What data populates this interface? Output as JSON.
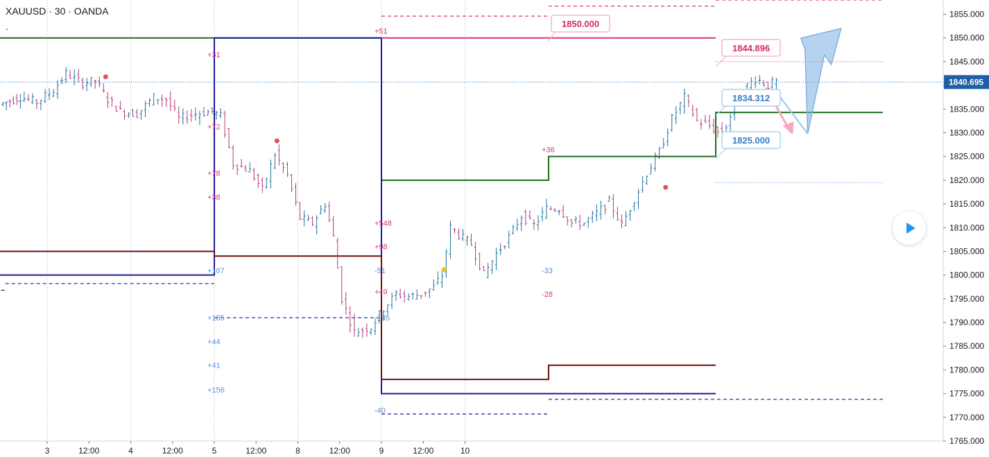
{
  "header": {
    "symbol": "XAUUSD · 30 · OANDA",
    "dot": "."
  },
  "colors": {
    "up": "#1e6fa0",
    "down": "#b0397a",
    "grid": "#b2b5be",
    "green": "#1b6e1b",
    "navy": "#1a1a9a",
    "maroon": "#6b0f0f",
    "magenta": "#d63384",
    "lightblue": "#5b8dd9",
    "pinkbox": "#f3b5cc",
    "bluebox": "#a9d3ee",
    "axis": "#131722"
  },
  "chart_data": {
    "type": "candlestick",
    "timeframe": "30",
    "ylim": [
      1765,
      1858
    ],
    "x_ticks": [
      "3",
      "12:00",
      "4",
      "12:00",
      "5",
      "12:00",
      "8",
      "12:00",
      "9",
      "12:00",
      "10"
    ],
    "y_ticks": [
      "1765.000",
      "1770.000",
      "1775.000",
      "1780.000",
      "1785.000",
      "1790.000",
      "1795.000",
      "1800.000",
      "1805.000",
      "1810.000",
      "1815.000",
      "1820.000",
      "1825.000",
      "1830.000",
      "1835.000",
      "1840.000",
      "1845.000",
      "1850.000",
      "1855.000"
    ],
    "last_price": "1840.695",
    "price_labels": [
      {
        "text": "1850.000",
        "price": 1850.0,
        "style": "pink"
      },
      {
        "text": "1844.896",
        "price": 1844.896,
        "style": "pink"
      },
      {
        "text": "1834.312",
        "price": 1834.312,
        "style": "blue"
      },
      {
        "text": "1825.000",
        "price": 1825.0,
        "style": "blue"
      }
    ],
    "pivot_levels": [
      {
        "color": "green",
        "segments": [
          [
            -1,
            1850.0,
            4.0
          ],
          [
            4.0,
            1820.0,
            6.0
          ],
          [
            6.0,
            1825.0,
            8.0
          ],
          [
            8.0,
            1834.3,
            10.0
          ]
        ]
      },
      {
        "color": "navy",
        "segments": [
          [
            -1,
            1800.0,
            2.0
          ],
          [
            2.0,
            1850.0,
            4.0
          ],
          [
            4.0,
            1775.0,
            8.0
          ]
        ]
      },
      {
        "color": "maroon",
        "segments": [
          [
            -1,
            1805.0,
            2.0
          ],
          [
            2.0,
            1804.0,
            4.0
          ],
          [
            4.0,
            1778.0,
            6.0
          ],
          [
            6.0,
            1781.0,
            8.0
          ]
        ]
      },
      {
        "color": "magenta",
        "segments": [
          [
            4.0,
            1850.0,
            8.0
          ]
        ]
      }
    ],
    "dashed_levels": [
      {
        "color": "navy",
        "segments": [
          [
            -1,
            1796.8,
            -0.5
          ],
          [
            -0.5,
            1798.2,
            2.0
          ],
          [
            2.0,
            1791.0,
            4.0
          ],
          [
            4.0,
            1770.7,
            6.0
          ],
          [
            6.0,
            1773.8,
            10.0
          ]
        ]
      },
      {
        "color": "magenta",
        "segments": [
          [
            4.0,
            1854.6,
            6.0
          ],
          [
            6.0,
            1856.7,
            8.0
          ],
          [
            8.0,
            1858.0,
            10.0
          ]
        ]
      },
      {
        "color": "magenta",
        "dotted": true,
        "segments": [
          [
            8.0,
            1845.0,
            10.0
          ]
        ]
      },
      {
        "color": "lightblue",
        "dotted": true,
        "segments": [
          [
            8.0,
            1819.5,
            10.0
          ]
        ]
      }
    ],
    "annotations": [
      {
        "text": "+31",
        "x": 2.0,
        "price": 1846.5,
        "color": "magenta"
      },
      {
        "text": "+72",
        "x": 2.0,
        "price": 1831.3,
        "color": "magenta"
      },
      {
        "text": "+78",
        "x": 2.0,
        "price": 1821.5,
        "color": "magenta"
      },
      {
        "text": "+38",
        "x": 2.0,
        "price": 1816.5,
        "color": "magenta"
      },
      {
        "text": "+167",
        "x": 2.0,
        "price": 1801.0,
        "color": "lightblue"
      },
      {
        "text": "+185",
        "x": 2.0,
        "price": 1791.0,
        "color": "lightblue"
      },
      {
        "text": "+44",
        "x": 2.0,
        "price": 1786.0,
        "color": "lightblue"
      },
      {
        "text": "+41",
        "x": 2.0,
        "price": 1781.0,
        "color": "lightblue"
      },
      {
        "text": "+156",
        "x": 2.0,
        "price": 1775.8,
        "color": "lightblue"
      },
      {
        "text": "+51",
        "x": 4.0,
        "price": 1851.5,
        "color": "magenta"
      },
      {
        "text": "+548",
        "x": 4.0,
        "price": 1811.0,
        "color": "magenta"
      },
      {
        "text": "+98",
        "x": 4.0,
        "price": 1806.0,
        "color": "magenta"
      },
      {
        "text": "-51",
        "x": 4.0,
        "price": 1801.0,
        "color": "lightblue"
      },
      {
        "text": "+49",
        "x": 4.0,
        "price": 1796.5,
        "color": "magenta"
      },
      {
        "text": "-135",
        "x": 4.0,
        "price": 1791.0,
        "color": "lightblue"
      },
      {
        "text": "-40",
        "x": 4.0,
        "price": 1771.5,
        "color": "lightblue"
      },
      {
        "text": "+36",
        "x": 6.0,
        "price": 1826.5,
        "color": "magenta"
      },
      {
        "text": "-33",
        "x": 6.0,
        "price": 1801.0,
        "color": "lightblue"
      },
      {
        "text": "-28",
        "x": 6.0,
        "price": 1796.0,
        "color": "magenta"
      }
    ],
    "markers": [
      {
        "x": 0.7,
        "price": 1841.8,
        "color": "#e05555"
      },
      {
        "x": 2.75,
        "price": 1828.3,
        "color": "#e05555"
      },
      {
        "x": 4.75,
        "price": 1801.2,
        "color": "#f0c419"
      },
      {
        "x": 7.4,
        "price": 1818.5,
        "color": "#e05555"
      }
    ],
    "price_path": [
      [
        -0.55,
        1836.0
      ],
      [
        -0.3,
        1837.5
      ],
      [
        -0.1,
        1836.5
      ],
      [
        0.1,
        1839.0
      ],
      [
        0.25,
        1842.5
      ],
      [
        0.45,
        1840.5
      ],
      [
        0.6,
        1841.0
      ],
      [
        0.75,
        1837.0
      ],
      [
        0.9,
        1834.5
      ],
      [
        1.1,
        1834.0
      ],
      [
        1.3,
        1837.5
      ],
      [
        1.45,
        1837.0
      ],
      [
        1.6,
        1833.0
      ],
      [
        1.8,
        1834.0
      ],
      [
        2.0,
        1834.5
      ],
      [
        2.1,
        1833.5
      ],
      [
        2.25,
        1823.5
      ],
      [
        2.45,
        1822.0
      ],
      [
        2.6,
        1818.0
      ],
      [
        2.75,
        1825.5
      ],
      [
        2.9,
        1821.0
      ],
      [
        3.05,
        1812.0
      ],
      [
        3.2,
        1811.0
      ],
      [
        3.35,
        1815.0
      ],
      [
        3.45,
        1808.0
      ],
      [
        3.55,
        1795.0
      ],
      [
        3.7,
        1788.0
      ],
      [
        3.9,
        1789.0
      ],
      [
        4.05,
        1793.0
      ],
      [
        4.2,
        1796.0
      ],
      [
        4.35,
        1795.5
      ],
      [
        4.5,
        1796.0
      ],
      [
        4.65,
        1797.5
      ],
      [
        4.75,
        1800.0
      ],
      [
        4.85,
        1810.0
      ],
      [
        4.95,
        1808.5
      ],
      [
        5.1,
        1806.5
      ],
      [
        5.25,
        1800.0
      ],
      [
        5.4,
        1804.5
      ],
      [
        5.55,
        1808.0
      ],
      [
        5.7,
        1812.5
      ],
      [
        5.85,
        1810.5
      ],
      [
        6.0,
        1814.0
      ],
      [
        6.15,
        1814.0
      ],
      [
        6.3,
        1811.0
      ],
      [
        6.45,
        1811.0
      ],
      [
        6.6,
        1813.0
      ],
      [
        6.75,
        1815.5
      ],
      [
        6.9,
        1810.5
      ],
      [
        7.05,
        1816.0
      ],
      [
        7.2,
        1821.5
      ],
      [
        7.35,
        1826.0
      ],
      [
        7.5,
        1833.0
      ],
      [
        7.65,
        1837.5
      ],
      [
        7.8,
        1832.5
      ],
      [
        7.95,
        1831.5
      ],
      [
        8.1,
        1829.5
      ],
      [
        8.2,
        1833.5
      ],
      [
        8.35,
        1839.0
      ],
      [
        8.5,
        1841.5
      ],
      [
        8.65,
        1840.0
      ],
      [
        8.75,
        1840.7
      ]
    ],
    "drawings": [
      {
        "kind": "arrow",
        "color": "#a9d3ee",
        "from": [
          8.75,
          1838.0
        ],
        "to": [
          9.1,
          1829.8
        ],
        "tip": [
          9.5,
          1852.0
        ]
      },
      {
        "kind": "arrow",
        "color": "#f3b5cc",
        "from": [
          8.6,
          1839.5
        ],
        "to": [
          8.9,
          1830.0
        ]
      }
    ]
  }
}
